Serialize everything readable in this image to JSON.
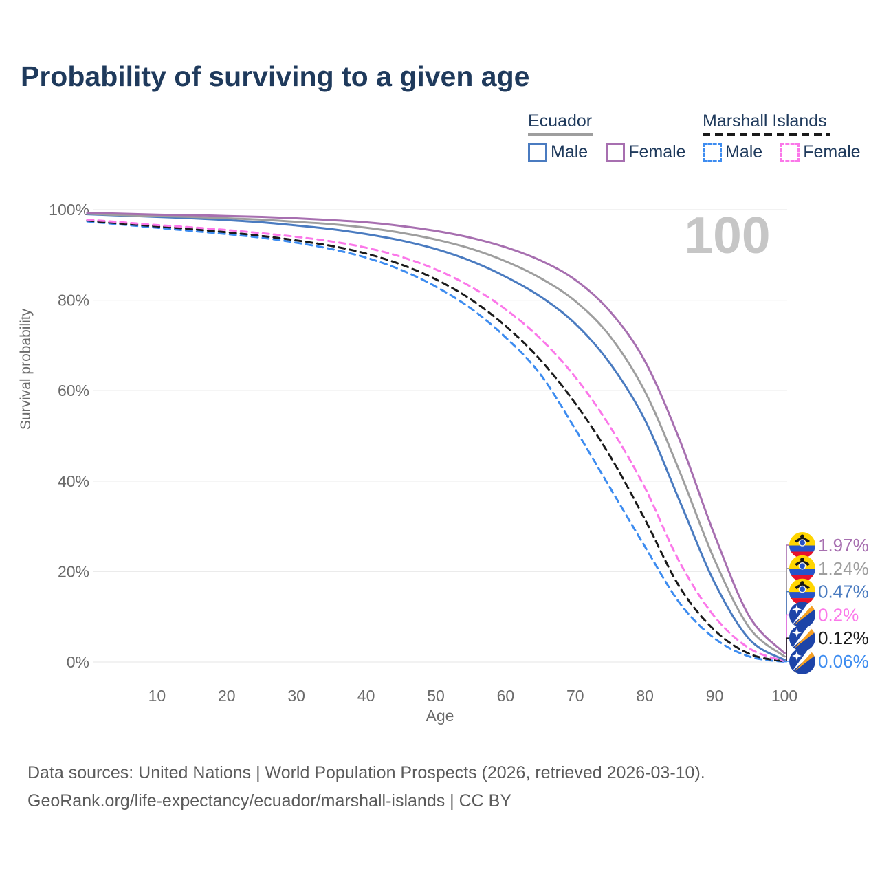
{
  "title": "Probability of surviving to a given age",
  "watermark": "100",
  "legend": {
    "groups": [
      {
        "name": "Ecuador",
        "line_style": "solid",
        "underline_color": "#9e9e9e",
        "items": [
          {
            "label": "Male",
            "color": "#4a7bc0"
          },
          {
            "label": "Female",
            "color": "#a76fb0"
          }
        ]
      },
      {
        "name": "Marshall Islands",
        "line_style": "dashed",
        "underline_color": "#1a1a1a",
        "items": [
          {
            "label": "Male",
            "color": "#3d8cf0"
          },
          {
            "label": "Female",
            "color": "#fb77e9"
          }
        ]
      }
    ]
  },
  "chart_data": {
    "type": "line",
    "title": "Probability of surviving to a given age",
    "xlabel": "Age",
    "ylabel": "Survival probability",
    "xlim": [
      0,
      100
    ],
    "ylim": [
      0,
      100
    ],
    "grid": "horizontal",
    "legend_position": "top-right",
    "x": [
      0,
      5,
      10,
      15,
      20,
      25,
      30,
      35,
      40,
      45,
      50,
      55,
      60,
      65,
      70,
      75,
      80,
      85,
      90,
      95,
      100
    ],
    "xticks": [
      {
        "value": 10,
        "label": "10"
      },
      {
        "value": 20,
        "label": "20"
      },
      {
        "value": 30,
        "label": "30"
      },
      {
        "value": 40,
        "label": "40"
      },
      {
        "value": 50,
        "label": "50"
      },
      {
        "value": 60,
        "label": "60"
      },
      {
        "value": 70,
        "label": "70"
      },
      {
        "value": 80,
        "label": "80"
      },
      {
        "value": 90,
        "label": "90"
      },
      {
        "value": 100,
        "label": "100"
      }
    ],
    "yticks": [
      {
        "value": 0,
        "label": "0%"
      },
      {
        "value": 20,
        "label": "20%"
      },
      {
        "value": 40,
        "label": "40%"
      },
      {
        "value": 60,
        "label": "60%"
      },
      {
        "value": 80,
        "label": "80%"
      },
      {
        "value": 100,
        "label": "100%"
      }
    ],
    "series": [
      {
        "name": "Marshall Islands Male",
        "country": "Marshall Islands",
        "sex": "Male",
        "color": "#3d8cf0",
        "dashed": true,
        "flag": "marshall",
        "end_label": "0.06%",
        "values": [
          97.4,
          96.7,
          96.0,
          95.3,
          94.6,
          93.8,
          92.7,
          91.3,
          89.4,
          86.7,
          83.0,
          78.2,
          71.8,
          63.6,
          51.5,
          38.5,
          25.5,
          13.0,
          5.2,
          1.2,
          0.06
        ]
      },
      {
        "name": "Marshall Islands Both sexes",
        "country": "Marshall Islands",
        "sex": "Both",
        "color": "#1a1a1a",
        "dashed": true,
        "flag": "marshall",
        "end_label": "0.12%",
        "values": [
          97.6,
          96.9,
          96.3,
          95.7,
          95.0,
          94.2,
          93.2,
          92.0,
          90.3,
          87.9,
          84.6,
          80.2,
          74.3,
          66.8,
          57.2,
          45.5,
          31.5,
          16.5,
          7.0,
          1.8,
          0.12
        ]
      },
      {
        "name": "Marshall Islands Female",
        "country": "Marshall Islands",
        "sex": "Female",
        "color": "#fb77e9",
        "dashed": true,
        "flag": "marshall",
        "end_label": "0.2%",
        "values": [
          97.8,
          97.2,
          96.6,
          96.1,
          95.5,
          94.8,
          94.0,
          93.0,
          91.6,
          89.6,
          86.8,
          83.0,
          78.0,
          71.5,
          63.0,
          52.0,
          38.5,
          22.0,
          10.0,
          3.0,
          0.2
        ]
      },
      {
        "name": "Ecuador Male",
        "country": "Ecuador",
        "sex": "Male",
        "color": "#4a7bc0",
        "dashed": false,
        "flag": "ecuador",
        "end_label": "0.47%",
        "values": [
          99.0,
          98.7,
          98.4,
          98.1,
          97.7,
          97.2,
          96.5,
          95.7,
          94.6,
          93.2,
          91.3,
          88.7,
          85.2,
          80.8,
          74.8,
          66.0,
          53.5,
          35.5,
          17.5,
          5.0,
          0.47
        ]
      },
      {
        "name": "Ecuador Both sexes",
        "country": "Ecuador",
        "sex": "Both",
        "color": "#9e9e9e",
        "dashed": false,
        "flag": "ecuador",
        "end_label": "1.24%",
        "values": [
          99.1,
          98.8,
          98.6,
          98.4,
          98.1,
          97.8,
          97.3,
          96.8,
          96.0,
          94.9,
          93.4,
          91.4,
          88.6,
          84.9,
          79.8,
          72.0,
          59.8,
          42.0,
          22.5,
          7.5,
          1.24
        ]
      },
      {
        "name": "Ecuador Female",
        "country": "Ecuador",
        "sex": "Female",
        "color": "#a76fb0",
        "dashed": false,
        "flag": "ecuador",
        "end_label": "1.97%",
        "values": [
          99.3,
          99.1,
          98.9,
          98.8,
          98.6,
          98.4,
          98.1,
          97.7,
          97.2,
          96.4,
          95.3,
          93.8,
          91.7,
          88.8,
          84.5,
          77.5,
          66.5,
          49.0,
          28.0,
          10.0,
          1.97
        ]
      }
    ]
  },
  "footer": {
    "line1": "Data sources: United Nations | World Population Prospects (2026, retrieved 2026-03-10).",
    "line2": "GeoRank.org/life-expectancy/ecuador/marshall-islands | CC BY"
  },
  "colors": {
    "title_text": "#1f3a5c",
    "axis_text": "#6b6b6b",
    "grid": "#ebebeb",
    "watermark": "#c6c6c6",
    "footer_text": "#5b5b5b",
    "ecuador_flag_yellow": "#ffd500",
    "ecuador_flag_blue": "#2653c9",
    "ecuador_flag_red": "#e8112d",
    "marshall_flag_blue": "#1d44a8",
    "marshall_flag_orange": "#f7a021",
    "marshall_flag_white": "#ffffff"
  }
}
